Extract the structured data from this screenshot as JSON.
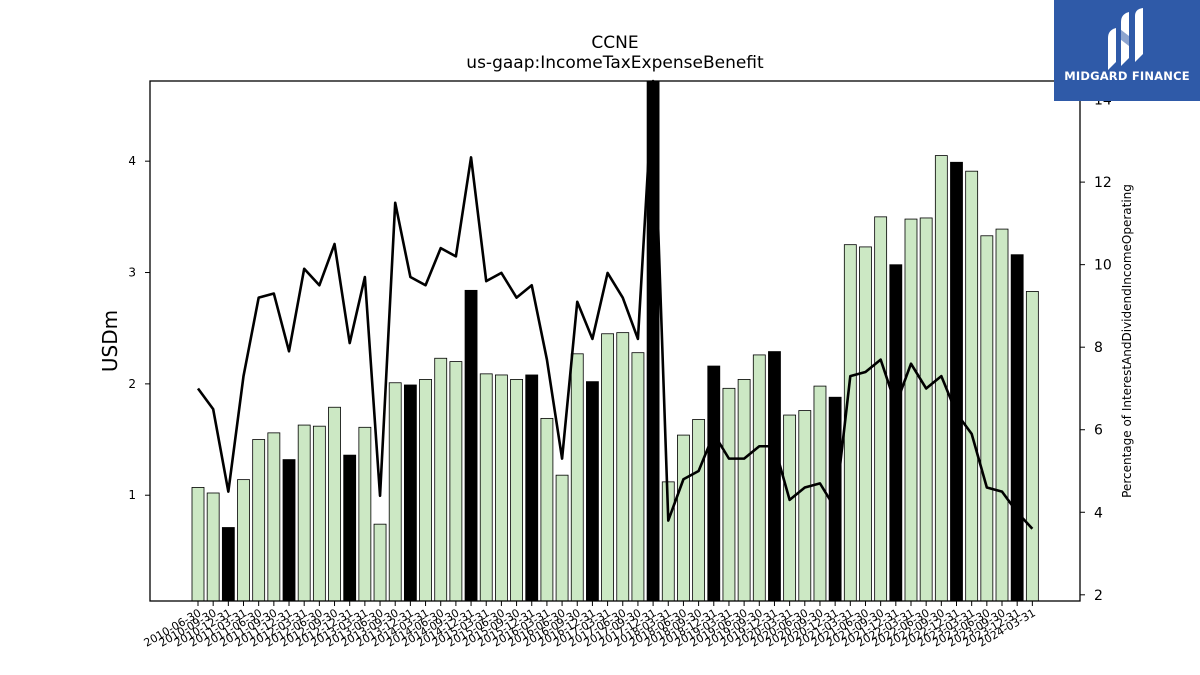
{
  "brand": {
    "name": "MIDGARD FINANCE",
    "background": "#2f5aa8"
  },
  "chart_data": {
    "type": "bar",
    "title": "CCNE",
    "subtitle": "us-gaap:IncomeTaxExpenseBenefit",
    "ylabel": "USDm",
    "y2label": "Percentage of InterestAndDividendIncomeOperating",
    "ylim": [
      0.05,
      4.72
    ],
    "y2lim": [
      1.85,
      14.45
    ],
    "yticks": [
      1,
      2,
      3,
      4
    ],
    "y2ticks": [
      2,
      4,
      6,
      8,
      10,
      12,
      14
    ],
    "bar_colors": {
      "normal": "#cce8c4",
      "highlight": "#000000"
    },
    "categories": [
      "2010-06-30",
      "2010-09-30",
      "2010-12-31",
      "2011-03-31",
      "2011-06-30",
      "2011-09-30",
      "2011-12-31",
      "2012-03-31",
      "2012-06-30",
      "2012-09-30",
      "2012-12-31",
      "2013-03-31",
      "2013-06-30",
      "2013-09-30",
      "2013-12-31",
      "2014-03-31",
      "2014-06-30",
      "2014-09-30",
      "2014-12-31",
      "2015-03-31",
      "2015-06-30",
      "2015-09-30",
      "2015-12-31",
      "2016-03-31",
      "2016-06-30",
      "2016-09-30",
      "2016-12-31",
      "2017-03-31",
      "2017-06-30",
      "2017-09-30",
      "2017-12-31",
      "2018-03-31",
      "2018-06-30",
      "2018-09-30",
      "2018-12-31",
      "2019-03-31",
      "2019-06-30",
      "2019-09-30",
      "2019-12-31",
      "2020-03-31",
      "2020-06-30",
      "2020-09-30",
      "2020-12-31",
      "2021-03-31",
      "2021-06-30",
      "2021-09-30",
      "2021-12-31",
      "2022-03-31",
      "2022-06-30",
      "2022-09-30",
      "2022-12-31",
      "2023-03-31",
      "2023-06-30",
      "2023-09-30",
      "2023-12-31",
      "2024-03-31"
    ],
    "series": [
      {
        "type": "bar",
        "axis": "left",
        "values": [
          1.07,
          1.02,
          0.71,
          1.14,
          1.5,
          1.56,
          1.32,
          1.63,
          1.62,
          1.79,
          1.36,
          1.61,
          0.74,
          2.01,
          1.99,
          2.04,
          2.23,
          2.2,
          2.84,
          2.09,
          2.08,
          2.04,
          2.08,
          1.69,
          1.18,
          2.27,
          2.02,
          2.45,
          2.46,
          2.28,
          4.72,
          1.12,
          1.54,
          1.68,
          2.16,
          1.96,
          2.04,
          2.26,
          2.29,
          1.72,
          1.76,
          1.98,
          1.88,
          3.25,
          3.23,
          3.5,
          3.07,
          3.48,
          3.49,
          4.05,
          3.99,
          3.91,
          3.33,
          3.39,
          3.16,
          2.83
        ],
        "highlight": [
          false,
          false,
          true,
          false,
          false,
          false,
          true,
          false,
          false,
          false,
          true,
          false,
          false,
          false,
          true,
          false,
          false,
          false,
          true,
          false,
          false,
          false,
          true,
          false,
          false,
          false,
          true,
          false,
          false,
          false,
          true,
          false,
          false,
          false,
          true,
          false,
          false,
          false,
          true,
          false,
          false,
          false,
          true,
          false,
          false,
          false,
          true,
          false,
          false,
          false,
          true,
          false,
          false,
          false,
          true,
          false
        ]
      },
      {
        "type": "line",
        "axis": "right",
        "color": "#000000",
        "values": [
          7.0,
          6.5,
          4.5,
          7.3,
          9.2,
          9.3,
          7.9,
          9.9,
          9.5,
          10.5,
          8.1,
          9.7,
          4.4,
          11.5,
          9.7,
          9.5,
          10.4,
          10.2,
          12.6,
          9.6,
          9.8,
          9.2,
          9.5,
          7.7,
          5.3,
          9.1,
          8.2,
          9.8,
          9.2,
          8.2,
          14.5,
          3.8,
          4.8,
          5.0,
          5.9,
          5.3,
          5.3,
          5.6,
          5.6,
          4.3,
          4.6,
          4.7,
          4.1,
          7.3,
          7.4,
          7.7,
          6.6,
          7.6,
          7.0,
          7.3,
          6.4,
          5.9,
          4.6,
          4.5,
          4.0,
          3.6
        ]
      }
    ]
  }
}
